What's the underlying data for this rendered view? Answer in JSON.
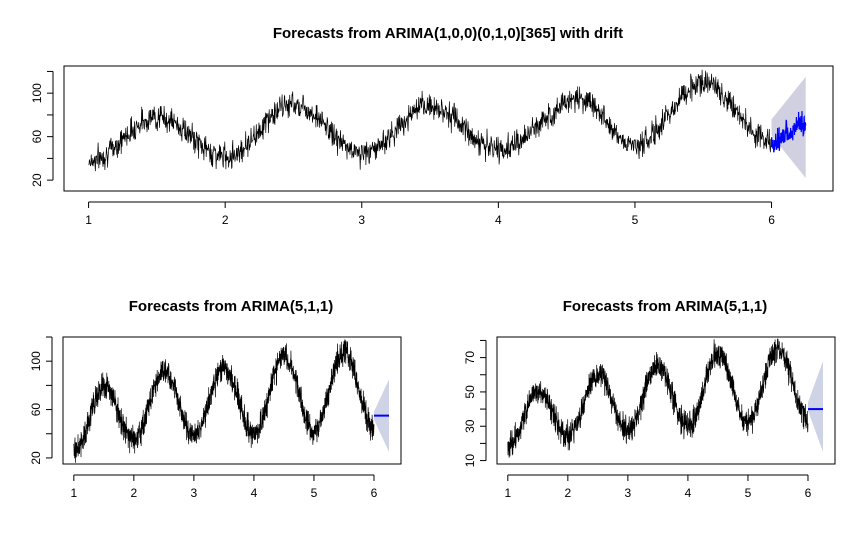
{
  "chart_data": [
    {
      "type": "line",
      "title": "Forecasts from ARIMA(1,0,0)(0,1,0)[365] with drift",
      "xlabel": "",
      "ylabel": "",
      "xlim": [
        0.82,
        6.45
      ],
      "ylim": [
        10,
        125
      ],
      "x_ticks": [
        "1",
        "2",
        "3",
        "4",
        "5",
        "6"
      ],
      "y_ticks": [
        "20",
        "60",
        "100"
      ],
      "series": [
        {
          "role": "history",
          "color": "#000000",
          "x_range": [
            1,
            6
          ],
          "seasonal_peaks": [
            [
              1.5,
              78
            ],
            [
              2.5,
              90
            ],
            [
              3.5,
              88
            ],
            [
              4.6,
              95
            ],
            [
              5.5,
              110
            ]
          ],
          "seasonal_troughs": [
            [
              1.0,
              38
            ],
            [
              2.0,
              42
            ],
            [
              3.0,
              45
            ],
            [
              4.0,
              48
            ],
            [
              5.0,
              52
            ],
            [
              6.0,
              55
            ]
          ]
        },
        {
          "role": "forecast-mean",
          "color": "#0000ff",
          "x_range": [
            6.0,
            6.25
          ],
          "values": [
            52,
            58,
            62,
            70,
            75
          ]
        },
        {
          "role": "prediction-interval",
          "color": "#d0d0e0",
          "x_range": [
            6.0,
            6.25
          ],
          "lower": 22,
          "upper": 115
        }
      ],
      "grid": false
    },
    {
      "type": "line",
      "title": "Forecasts from ARIMA(5,1,1)",
      "xlabel": "",
      "ylabel": "",
      "xlim": [
        0.82,
        6.45
      ],
      "ylim": [
        15,
        120
      ],
      "x_ticks": [
        "1",
        "2",
        "3",
        "4",
        "5",
        "6"
      ],
      "y_ticks": [
        "20",
        "60",
        "100"
      ],
      "series": [
        {
          "role": "history",
          "color": "#000000",
          "x_range": [
            1,
            6
          ],
          "seasonal_peaks": [
            [
              1.5,
              78
            ],
            [
              2.5,
              92
            ],
            [
              3.5,
              95
            ],
            [
              4.5,
              105
            ],
            [
              5.5,
              108
            ]
          ],
          "seasonal_troughs": [
            [
              1.0,
              25
            ],
            [
              2.0,
              35
            ],
            [
              3.0,
              38
            ],
            [
              4.0,
              40
            ],
            [
              5.0,
              42
            ],
            [
              6.0,
              45
            ]
          ]
        },
        {
          "role": "forecast-mean",
          "color": "#0000ff",
          "x_range": [
            6.0,
            6.25
          ],
          "values": [
            55,
            55
          ]
        },
        {
          "role": "prediction-interval-80",
          "color": "#9aa3cc",
          "x_range": [
            6.0,
            6.25
          ],
          "lower": 42,
          "upper": 68
        },
        {
          "role": "prediction-interval-95",
          "color": "#cfd3e6",
          "x_range": [
            6.0,
            6.25
          ],
          "lower": 25,
          "upper": 85
        }
      ],
      "grid": false
    },
    {
      "type": "line",
      "title": "Forecasts from ARIMA(5,1,1)",
      "xlabel": "",
      "ylabel": "",
      "xlim": [
        0.82,
        6.45
      ],
      "ylim": [
        8,
        82
      ],
      "x_ticks": [
        "1",
        "2",
        "3",
        "4",
        "5",
        "6"
      ],
      "y_ticks": [
        "10",
        "30",
        "50",
        "70"
      ],
      "series": [
        {
          "role": "history",
          "color": "#000000",
          "x_range": [
            1,
            6
          ],
          "seasonal_peaks": [
            [
              1.5,
              50
            ],
            [
              2.5,
              60
            ],
            [
              3.5,
              65
            ],
            [
              4.5,
              72
            ],
            [
              5.5,
              75
            ]
          ],
          "seasonal_troughs": [
            [
              1.0,
              18
            ],
            [
              2.0,
              25
            ],
            [
              3.0,
              28
            ],
            [
              4.0,
              30
            ],
            [
              5.0,
              32
            ],
            [
              6.0,
              35
            ]
          ]
        },
        {
          "role": "forecast-mean",
          "color": "#0000ff",
          "x_range": [
            6.0,
            6.25
          ],
          "values": [
            40,
            40
          ]
        },
        {
          "role": "prediction-interval-80",
          "color": "#9aa3cc",
          "x_range": [
            6.0,
            6.25
          ],
          "lower": 30,
          "upper": 52
        },
        {
          "role": "prediction-interval-95",
          "color": "#cfd3e6",
          "x_range": [
            6.0,
            6.25
          ],
          "lower": 15,
          "upper": 68
        }
      ],
      "grid": false
    }
  ]
}
